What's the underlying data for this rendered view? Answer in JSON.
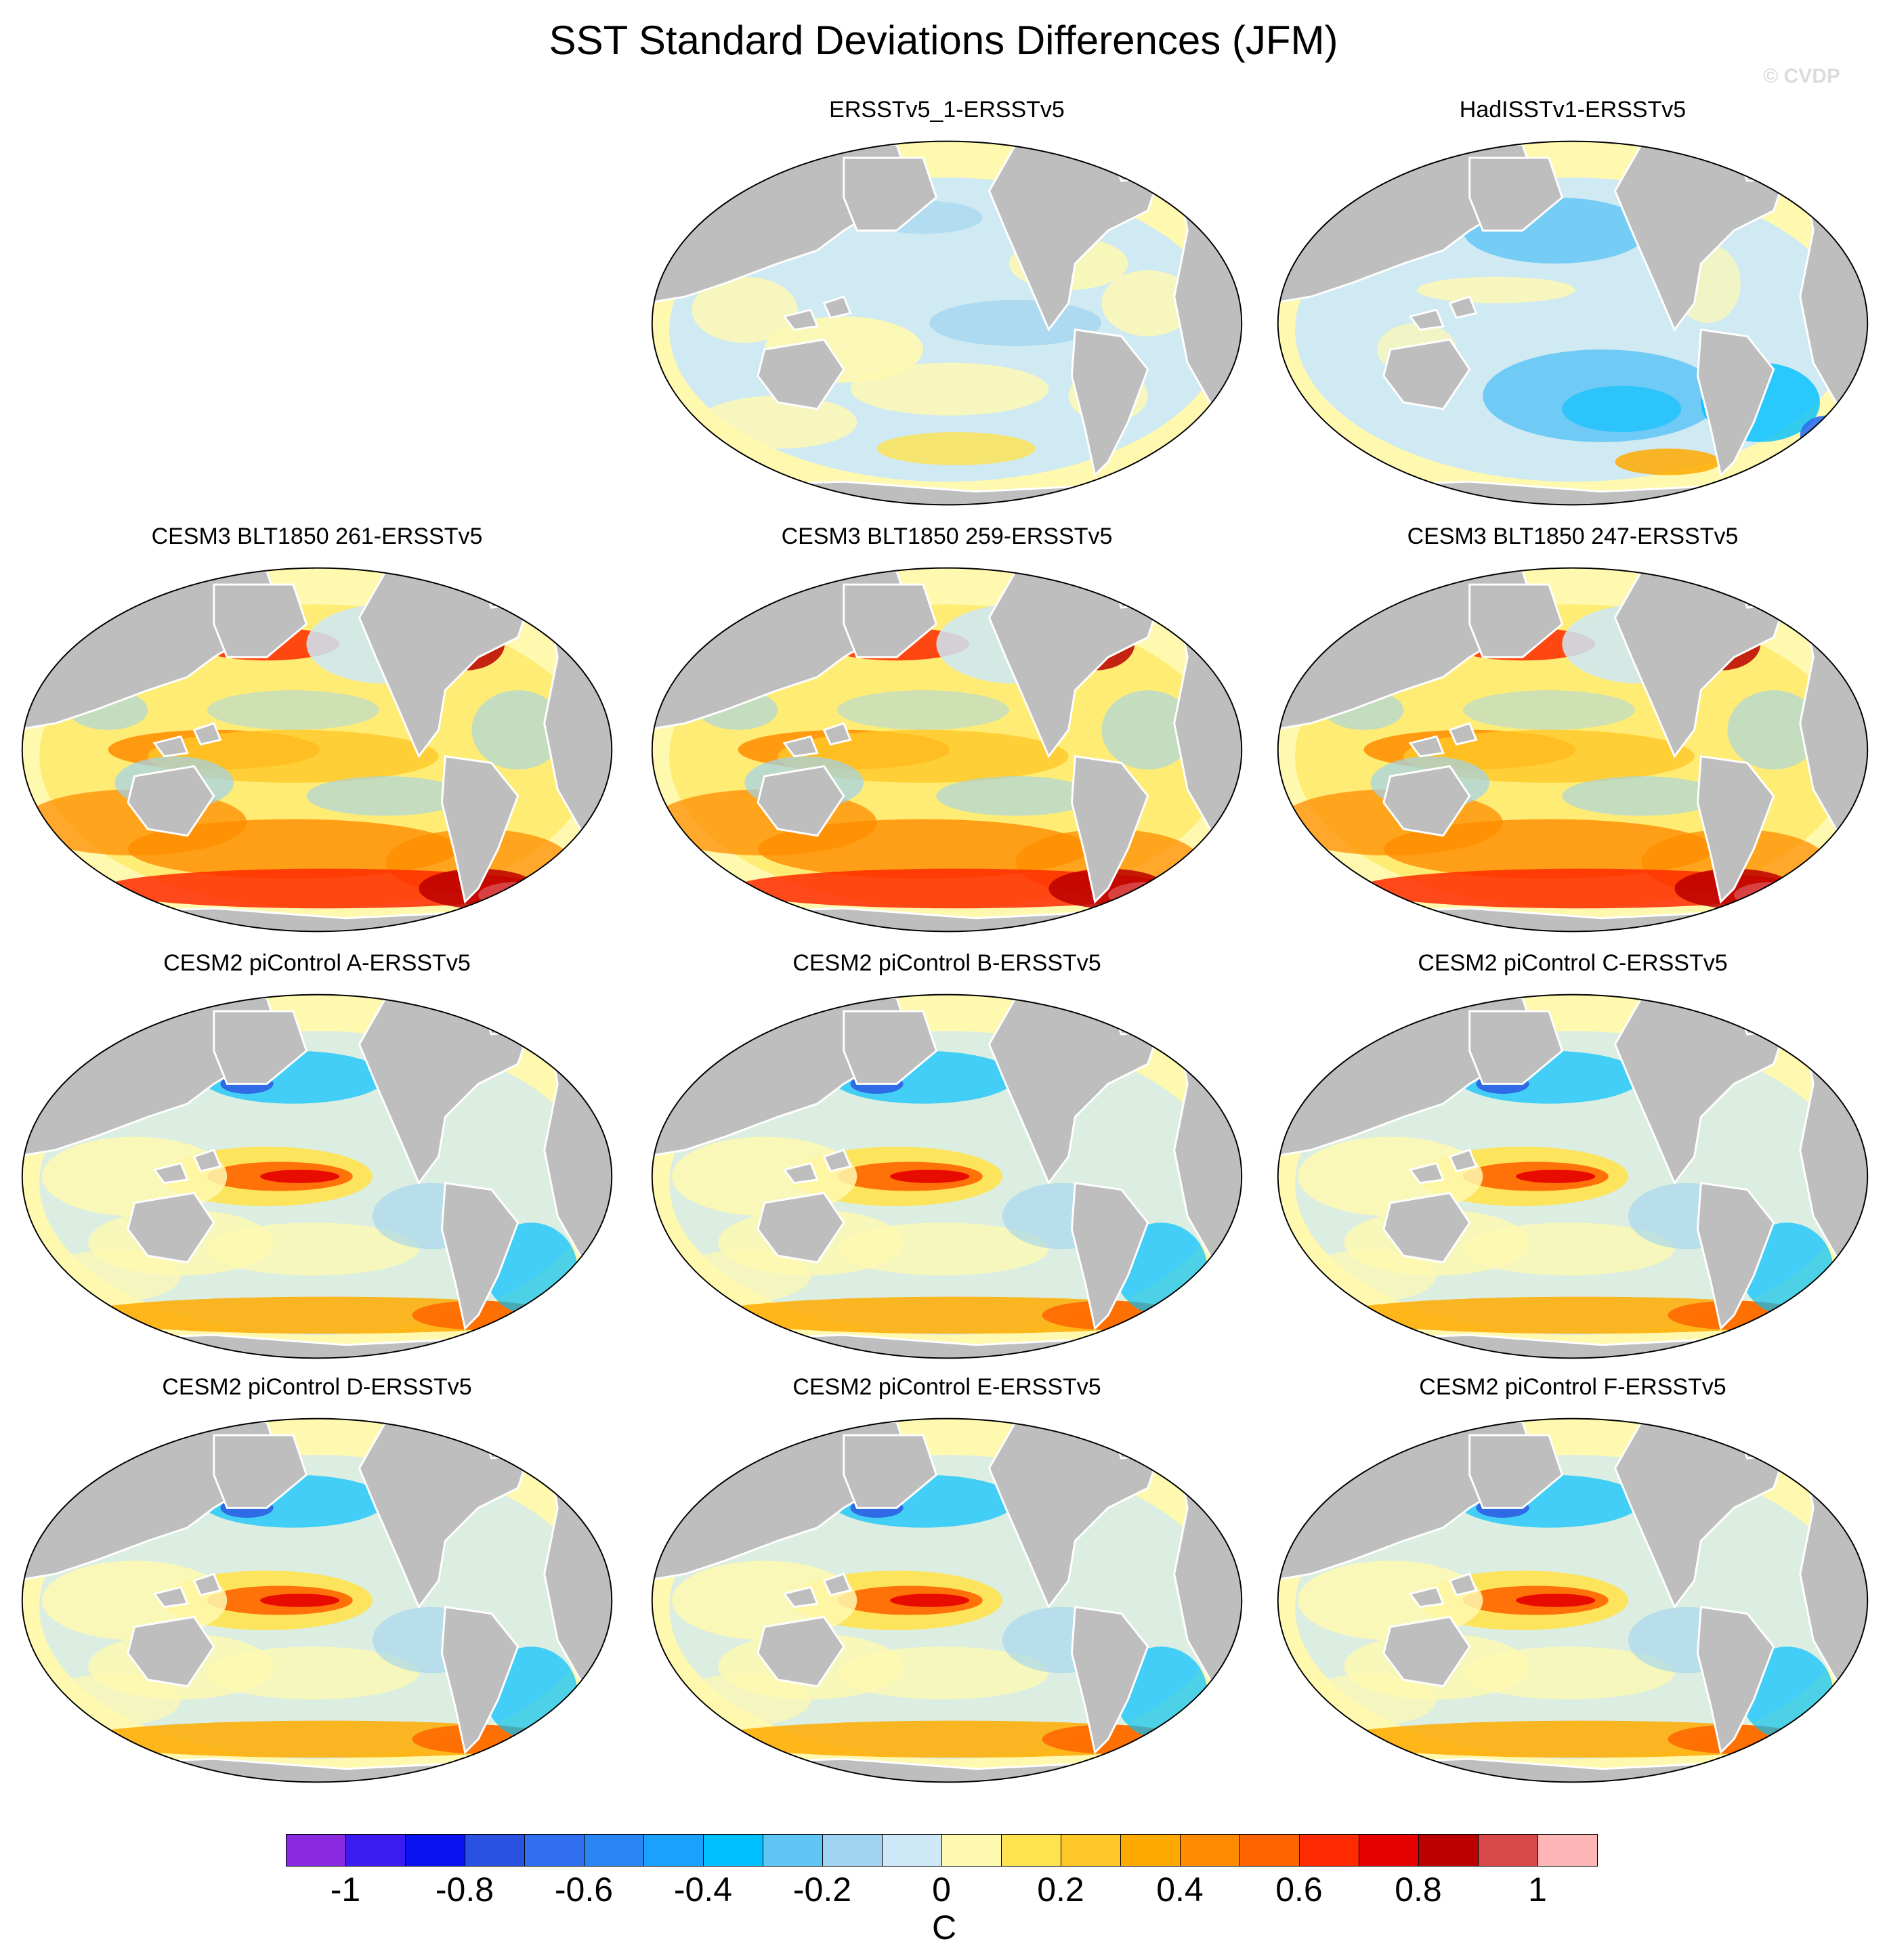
{
  "title": "SST Standard Deviations Differences (JFM)",
  "watermark": "© CVDP",
  "panels": [
    {
      "label": "ERSSTv5_1-ERSSTv5",
      "col": 1,
      "row": 0,
      "pattern": "obs1"
    },
    {
      "label": "HadISSTv1-ERSSTv5",
      "col": 2,
      "row": 0,
      "pattern": "obs2"
    },
    {
      "label": "CESM3 BLT1850 261-ERSSTv5",
      "col": 0,
      "row": 1,
      "pattern": "cesm3"
    },
    {
      "label": "CESM3 BLT1850 259-ERSSTv5",
      "col": 1,
      "row": 1,
      "pattern": "cesm3"
    },
    {
      "label": "CESM3 BLT1850 247-ERSSTv5",
      "col": 2,
      "row": 1,
      "pattern": "cesm3"
    },
    {
      "label": "CESM2 piControl A-ERSSTv5",
      "col": 0,
      "row": 2,
      "pattern": "cesm2"
    },
    {
      "label": "CESM2 piControl B-ERSSTv5",
      "col": 1,
      "row": 2,
      "pattern": "cesm2"
    },
    {
      "label": "CESM2 piControl C-ERSSTv5",
      "col": 2,
      "row": 2,
      "pattern": "cesm2"
    },
    {
      "label": "CESM2 piControl D-ERSSTv5",
      "col": 0,
      "row": 3,
      "pattern": "cesm2"
    },
    {
      "label": "CESM2 piControl E-ERSSTv5",
      "col": 1,
      "row": 3,
      "pattern": "cesm2"
    },
    {
      "label": "CESM2 piControl F-ERSSTv5",
      "col": 2,
      "row": 3,
      "pattern": "cesm2"
    }
  ],
  "colorbar": {
    "units": "C",
    "colors": [
      "#8a2be2",
      "#3b1bf0",
      "#0a12f0",
      "#2a52e0",
      "#2f6ff0",
      "#2b86f5",
      "#1aa1ff",
      "#00c0ff",
      "#5ec5f5",
      "#9fd3f0",
      "#cde9f7",
      "#fff9b0",
      "#ffe24f",
      "#ffc828",
      "#ffaa00",
      "#ff8c00",
      "#ff6400",
      "#ff2a00",
      "#e60000",
      "#bb0000",
      "#d94848",
      "#ffb6b6"
    ],
    "ticks": [
      "-1",
      "-0.8",
      "-0.6",
      "-0.4",
      "-0.2",
      "0",
      "0.2",
      "0.4",
      "0.6",
      "0.8",
      "1"
    ]
  },
  "map_colors": {
    "land": "#bebebe",
    "ocean_neutral": "#fff9b0",
    "coast": "#ffffff"
  }
}
